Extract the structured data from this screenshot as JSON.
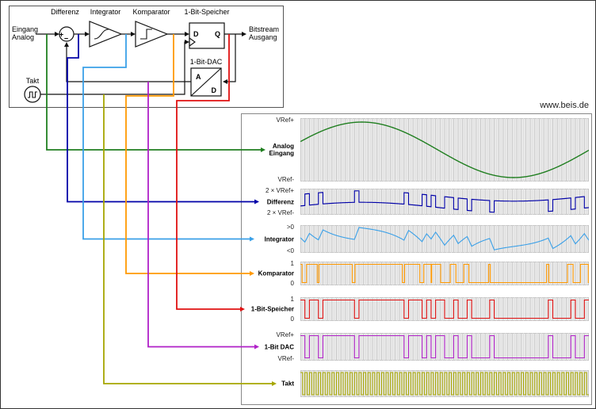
{
  "page": {
    "website": "www.beis.de"
  },
  "diagram": {
    "labels": {
      "differenz": "Differenz",
      "integrator": "Integrator",
      "komparator": "Komparator",
      "speicher": "1-Bit-Speicher",
      "dac": "1-Bit-DAC",
      "takt": "Takt"
    },
    "input": {
      "line1": "Eingang",
      "line2": "Analog"
    },
    "output": {
      "line1": "Bitstream",
      "line2": "Ausgang"
    },
    "flipflop": {
      "d": "D",
      "q": "Q"
    },
    "dac_pins": {
      "analog": "A",
      "digital": "D"
    },
    "summer": {
      "plus": "+",
      "minus": "−"
    }
  },
  "waveforms": {
    "rows": [
      {
        "id": "analog",
        "name_lines": [
          "Analog",
          "Eingang"
        ],
        "top_label": "VRef+",
        "bottom_label": "VRef-",
        "color": "#207f20"
      },
      {
        "id": "differenz",
        "name_lines": [
          "Differenz"
        ],
        "top_label": "2 × VRef+",
        "bottom_label": "2 × VRef-",
        "color": "#0000a8"
      },
      {
        "id": "integrator",
        "name_lines": [
          "Integrator"
        ],
        "top_label": ">0",
        "bottom_label": "<0",
        "color": "#3aa0e8"
      },
      {
        "id": "komparator",
        "name_lines": [
          "Komparator"
        ],
        "top_label": "1",
        "bottom_label": "0",
        "color": "#ff9900"
      },
      {
        "id": "speicher",
        "name_lines": [
          "1-Bit-Speicher"
        ],
        "top_label": "1",
        "bottom_label": "0",
        "color": "#e01010"
      },
      {
        "id": "dac",
        "name_lines": [
          "1-Bit DAC"
        ],
        "top_label": "VRef+",
        "bottom_label": "VRef-",
        "color": "#b020c8"
      },
      {
        "id": "takt",
        "name_lines": [
          "Takt"
        ],
        "top_label": "",
        "bottom_label": "",
        "color": "#a6a600"
      }
    ],
    "sim": {
      "clocks": 64,
      "amplitude": 0.9,
      "phase": 0.3,
      "sine_cycles": 0.95,
      "integrator_gain": 1.2,
      "integrator_initial": 0.25
    }
  }
}
